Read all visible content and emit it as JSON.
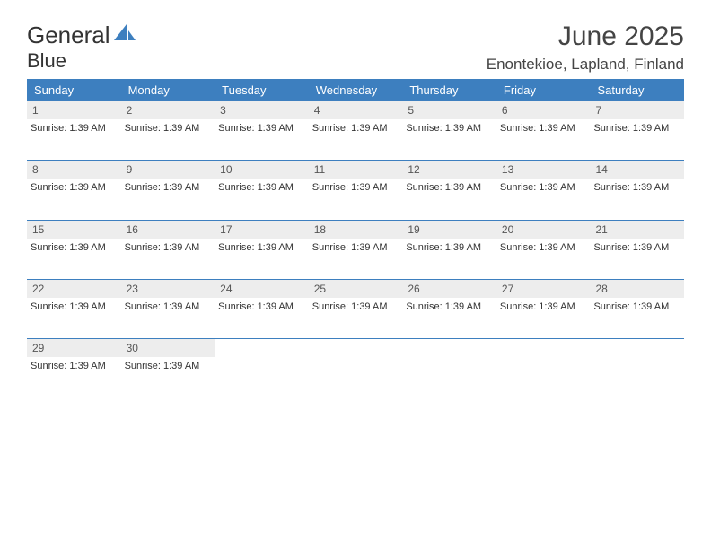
{
  "logo": {
    "text_general": "General",
    "text_blue": "Blue"
  },
  "header": {
    "month_title": "June 2025",
    "location": "Enontekioe, Lapland, Finland"
  },
  "colors": {
    "header_bg": "#3d7fbf",
    "header_text": "#ffffff",
    "day_num_bg": "#ededed",
    "page_bg": "#ffffff",
    "line": "#3d7fbf"
  },
  "weekdays": [
    "Sunday",
    "Monday",
    "Tuesday",
    "Wednesday",
    "Thursday",
    "Friday",
    "Saturday"
  ],
  "sunrise_label": "Sunrise: 1:39 AM",
  "weeks": [
    {
      "days": [
        {
          "n": "1",
          "info": "Sunrise: 1:39 AM"
        },
        {
          "n": "2",
          "info": "Sunrise: 1:39 AM"
        },
        {
          "n": "3",
          "info": "Sunrise: 1:39 AM"
        },
        {
          "n": "4",
          "info": "Sunrise: 1:39 AM"
        },
        {
          "n": "5",
          "info": "Sunrise: 1:39 AM"
        },
        {
          "n": "6",
          "info": "Sunrise: 1:39 AM"
        },
        {
          "n": "7",
          "info": "Sunrise: 1:39 AM"
        }
      ]
    },
    {
      "days": [
        {
          "n": "8",
          "info": "Sunrise: 1:39 AM"
        },
        {
          "n": "9",
          "info": "Sunrise: 1:39 AM"
        },
        {
          "n": "10",
          "info": "Sunrise: 1:39 AM"
        },
        {
          "n": "11",
          "info": "Sunrise: 1:39 AM"
        },
        {
          "n": "12",
          "info": "Sunrise: 1:39 AM"
        },
        {
          "n": "13",
          "info": "Sunrise: 1:39 AM"
        },
        {
          "n": "14",
          "info": "Sunrise: 1:39 AM"
        }
      ]
    },
    {
      "days": [
        {
          "n": "15",
          "info": "Sunrise: 1:39 AM"
        },
        {
          "n": "16",
          "info": "Sunrise: 1:39 AM"
        },
        {
          "n": "17",
          "info": "Sunrise: 1:39 AM"
        },
        {
          "n": "18",
          "info": "Sunrise: 1:39 AM"
        },
        {
          "n": "19",
          "info": "Sunrise: 1:39 AM"
        },
        {
          "n": "20",
          "info": "Sunrise: 1:39 AM"
        },
        {
          "n": "21",
          "info": "Sunrise: 1:39 AM"
        }
      ]
    },
    {
      "days": [
        {
          "n": "22",
          "info": "Sunrise: 1:39 AM"
        },
        {
          "n": "23",
          "info": "Sunrise: 1:39 AM"
        },
        {
          "n": "24",
          "info": "Sunrise: 1:39 AM"
        },
        {
          "n": "25",
          "info": "Sunrise: 1:39 AM"
        },
        {
          "n": "26",
          "info": "Sunrise: 1:39 AM"
        },
        {
          "n": "27",
          "info": "Sunrise: 1:39 AM"
        },
        {
          "n": "28",
          "info": "Sunrise: 1:39 AM"
        }
      ]
    },
    {
      "days": [
        {
          "n": "29",
          "info": "Sunrise: 1:39 AM"
        },
        {
          "n": "30",
          "info": "Sunrise: 1:39 AM"
        },
        {
          "n": "",
          "info": ""
        },
        {
          "n": "",
          "info": ""
        },
        {
          "n": "",
          "info": ""
        },
        {
          "n": "",
          "info": ""
        },
        {
          "n": "",
          "info": ""
        }
      ]
    }
  ]
}
